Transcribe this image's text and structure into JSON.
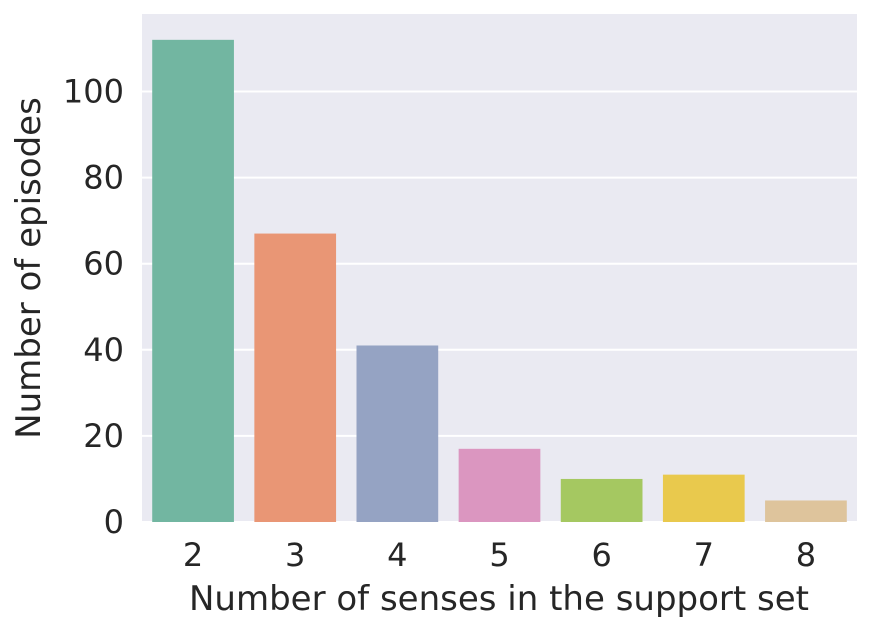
{
  "chart_data": {
    "type": "bar",
    "categories": [
      "2",
      "3",
      "4",
      "5",
      "6",
      "7",
      "8"
    ],
    "values": [
      112,
      67,
      41,
      17,
      10,
      11,
      5
    ],
    "colors": [
      "#72b6a1",
      "#e99675",
      "#95a3c3",
      "#db96c0",
      "#a5c861",
      "#e9c94d",
      "#dec49c"
    ],
    "xlabel": "Number of senses in the support set",
    "ylabel": "Number of episodes",
    "ylim": [
      0,
      118
    ],
    "yticks": [
      "0",
      "20",
      "40",
      "60",
      "80",
      "100"
    ],
    "grid": true,
    "background_color": "#eaeaf2",
    "grid_color": "#ffffff"
  }
}
